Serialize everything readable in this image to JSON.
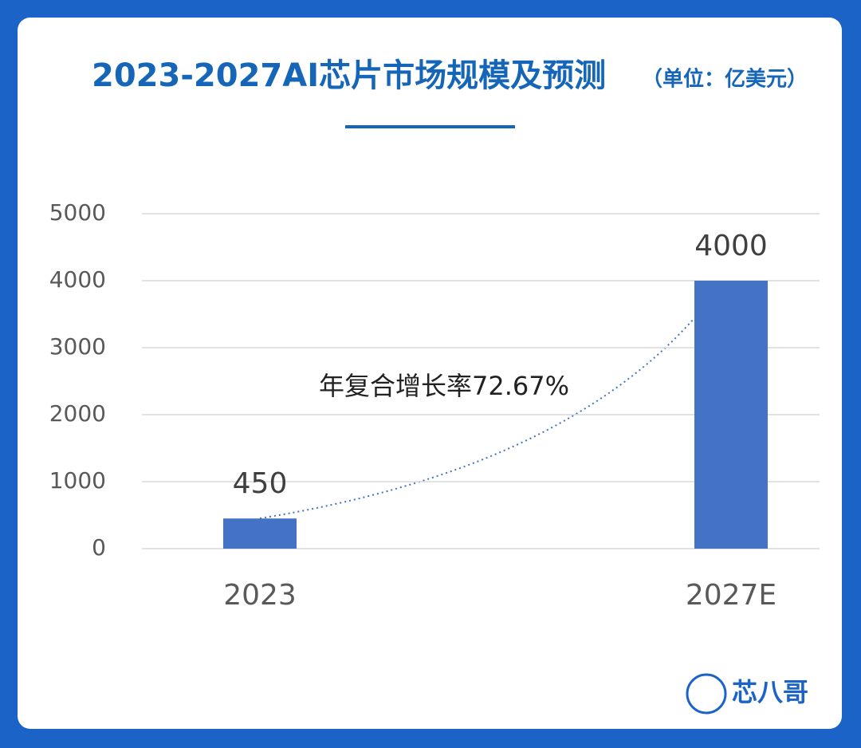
{
  "chart_data": {
    "type": "bar",
    "title": "2023-2027AI芯片市场规模及预测",
    "subtitle": "（单位：亿美元）",
    "annotation": "年复合增长率72.67%",
    "categories": [
      "2023",
      "2027E"
    ],
    "values": [
      450,
      4000
    ],
    "color": "#4472c4",
    "ylim": [
      0,
      5000
    ],
    "yticks": [
      0,
      1000,
      2000,
      3000,
      4000,
      5000
    ],
    "grid": true
  },
  "brand": "芯八哥"
}
